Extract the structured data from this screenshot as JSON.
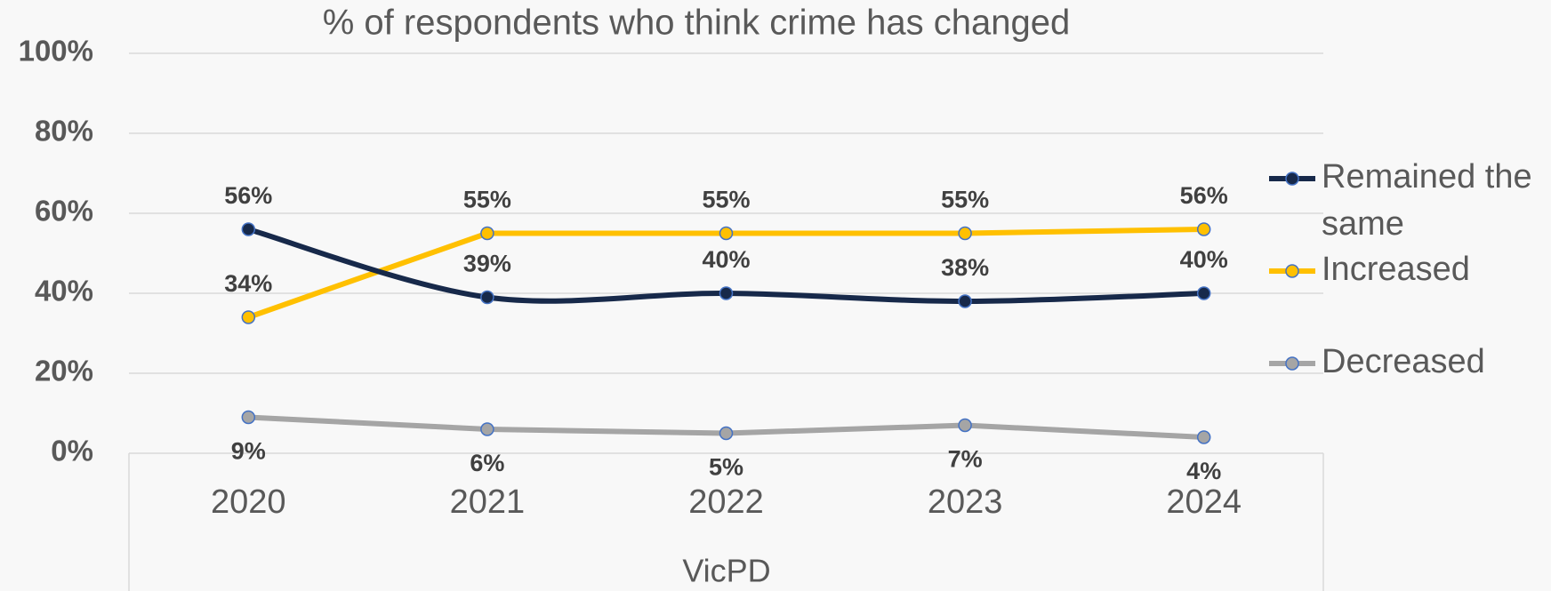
{
  "chart_data": {
    "type": "line",
    "title": "% of respondents who think crime has changed",
    "x_axis_label": "VicPD",
    "categories": [
      "2020",
      "2021",
      "2022",
      "2023",
      "2024"
    ],
    "series": [
      {
        "name": "Remained the same",
        "color": "#17294a",
        "smooth": true,
        "values": [
          56,
          39,
          40,
          38,
          40
        ],
        "value_labels": [
          "56%",
          "39%",
          "40%",
          "38%",
          "40%"
        ]
      },
      {
        "name": "Increased",
        "color": "#ffc000",
        "values": [
          34,
          55,
          55,
          55,
          56
        ],
        "value_labels": [
          "34%",
          "55%",
          "55%",
          "55%",
          "56%"
        ]
      },
      {
        "name": "Decreased",
        "color": "#a5a5a5",
        "values": [
          9,
          6,
          5,
          7,
          4
        ],
        "value_labels": [
          "9%",
          "6%",
          "5%",
          "7%",
          "4%"
        ]
      }
    ],
    "ylim": [
      0,
      100
    ],
    "yticks": [
      {
        "value": 0,
        "label": "0%"
      },
      {
        "value": 20,
        "label": "20%"
      },
      {
        "value": 40,
        "label": "40%"
      },
      {
        "value": 60,
        "label": "60%"
      },
      {
        "value": 80,
        "label": "80%"
      },
      {
        "value": 100,
        "label": "100%"
      }
    ],
    "grid": true,
    "legend": "right"
  }
}
